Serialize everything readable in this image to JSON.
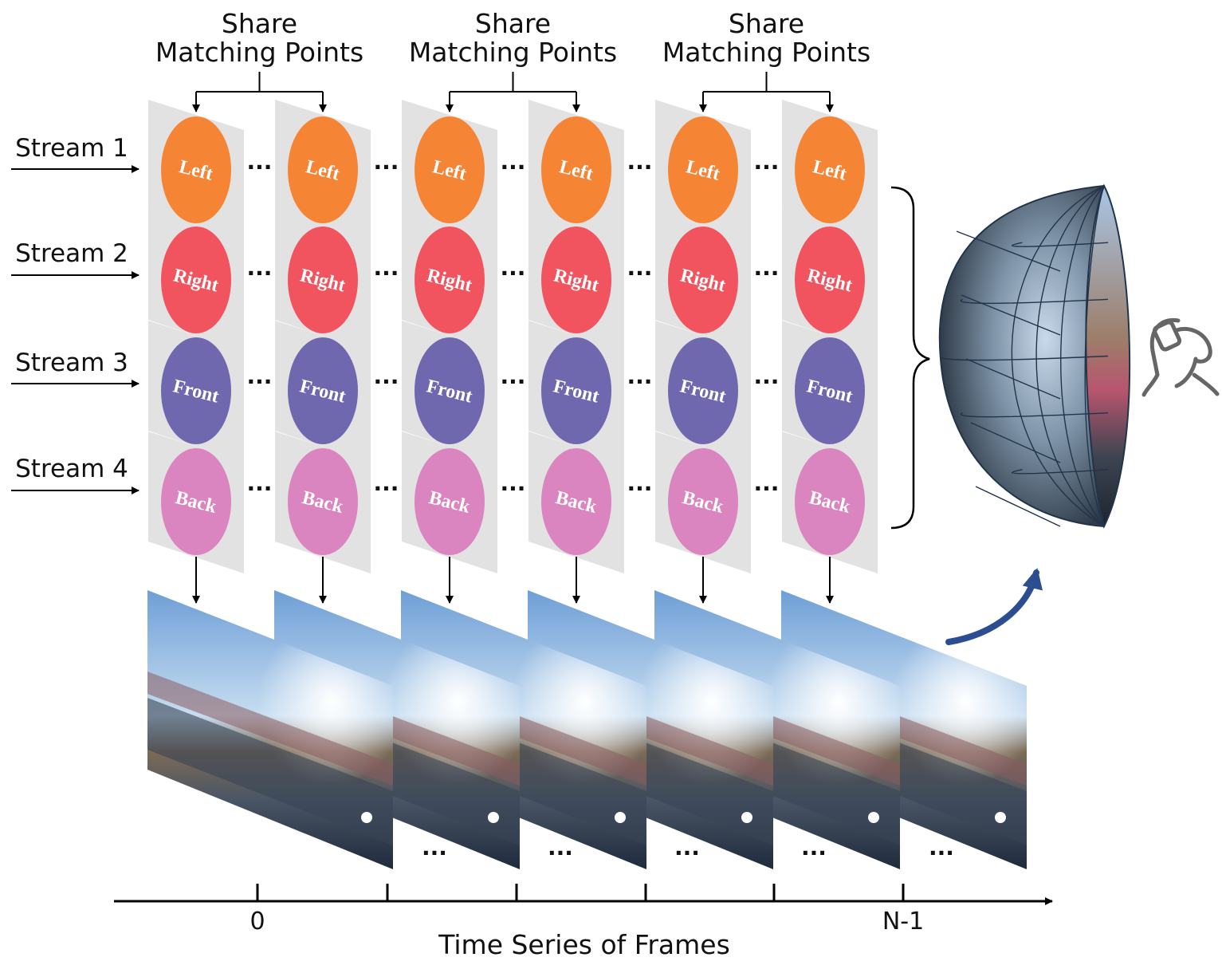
{
  "share_label": {
    "line1": "Share",
    "line2": "Matching Points"
  },
  "streams": [
    {
      "label": "Stream 1",
      "lens": "Left",
      "color": "#F58535"
    },
    {
      "label": "Stream 2",
      "lens": "Right",
      "color": "#F2545F"
    },
    {
      "label": "Stream 3",
      "lens": "Front",
      "color": "#7068AE"
    },
    {
      "label": "Stream 4",
      "lens": "Back",
      "color": "#DA85C0"
    }
  ],
  "ellipsis": "...",
  "axis": {
    "title": "Time Series of Frames",
    "start_label": "0",
    "end_label": "N-1"
  },
  "colors": {
    "panel": "#E2E2E2",
    "arrow": "#000000",
    "curve_arrow": "#2C4E91",
    "sphere_mesh": "#22344A"
  }
}
